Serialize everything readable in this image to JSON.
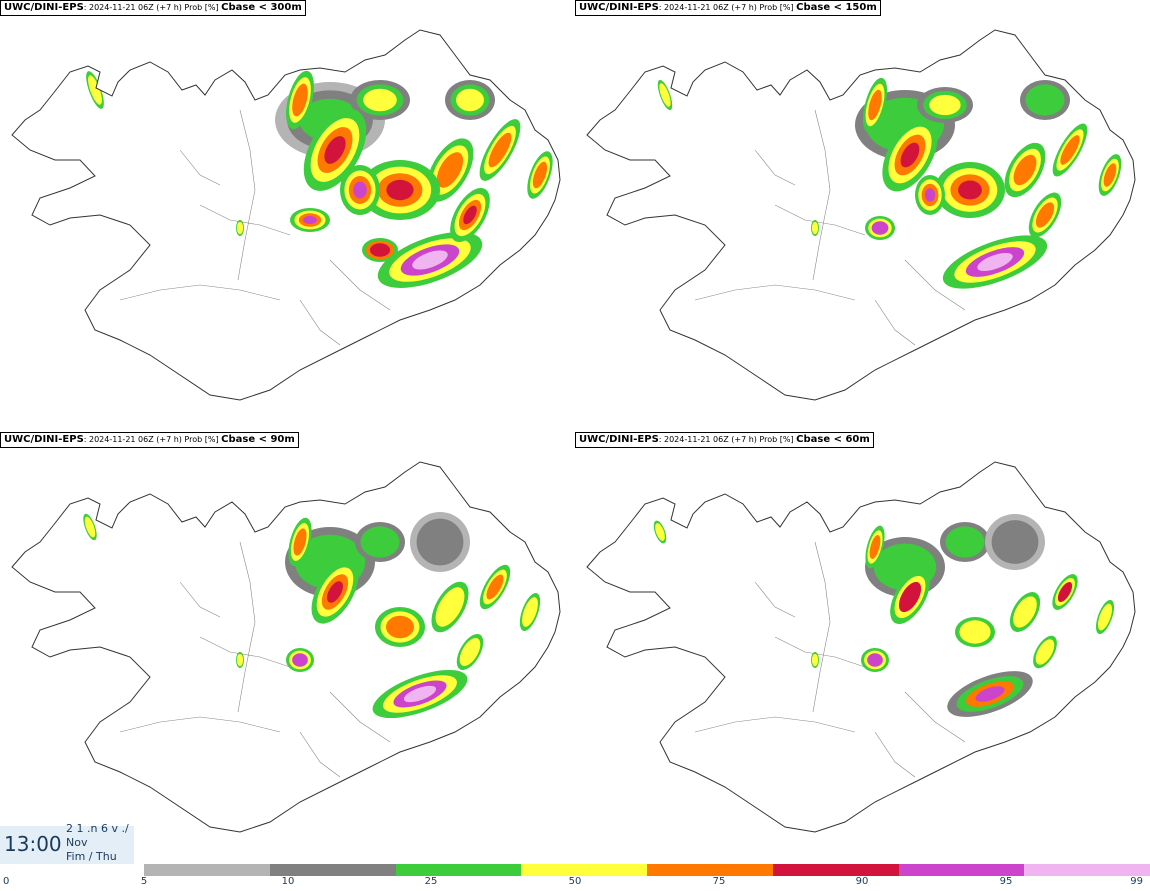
{
  "panels": [
    {
      "model": "UWC/DINI-EPS",
      "run": ": 2024-11-21 06Z (+7 h) Prob [%] ",
      "field": "Cbase < 300m"
    },
    {
      "model": "UWC/DINI-EPS",
      "run": ": 2024-11-21 06Z (+7 h) Prob [%] ",
      "field": "Cbase < 150m"
    },
    {
      "model": "UWC/DINI-EPS",
      "run": ": 2024-11-21 06Z (+7 h) Prob [%] ",
      "field": "Cbase < 90m"
    },
    {
      "model": "UWC/DINI-EPS",
      "run": ": 2024-11-21 06Z (+7 h) Prob [%] ",
      "field": "Cbase < 60m"
    }
  ],
  "timebox": {
    "time": "13:00",
    "line1": "2 1 .n 6 v ./",
    "line2": "Nov",
    "line3": "Fim / Thu"
  },
  "colorbar": {
    "ticks": [
      "0",
      "5",
      "10",
      "25",
      "50",
      "75",
      "90",
      "95",
      "99"
    ],
    "colors": [
      "#b4b4b4",
      "#808080",
      "#3ccc3c",
      "#ffff3c",
      "#ff7800",
      "#d2143c",
      "#cc44cc",
      "#f0b4f0"
    ]
  },
  "legend_colors": {
    "p5": "#b4b4b4",
    "p10": "#808080",
    "p25": "#3ccc3c",
    "p50": "#ffff3c",
    "p75": "#ff7800",
    "p90": "#d2143c",
    "p95": "#cc44cc",
    "p99": "#f0b4f0"
  }
}
